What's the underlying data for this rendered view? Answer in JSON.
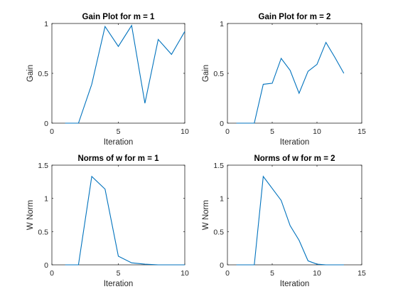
{
  "chart_data": [
    {
      "type": "line",
      "title": "Gain Plot for m = 1",
      "xlabel": "Iteration",
      "ylabel": "Gain",
      "xlim": [
        0,
        10
      ],
      "ylim": [
        0,
        1
      ],
      "xticks": [
        0,
        5,
        10
      ],
      "xtick_labels": [
        "0",
        "5",
        "10"
      ],
      "yticks": [
        0,
        0.5,
        1
      ],
      "ytick_labels": [
        "0",
        "0.5",
        "1"
      ],
      "grid": false,
      "color": "#0072BD",
      "x": [
        1,
        2,
        3,
        4,
        5,
        6,
        7,
        8,
        9,
        10
      ],
      "y": [
        0,
        0,
        0.39,
        0.97,
        0.77,
        0.98,
        0.2,
        0.84,
        0.69,
        0.92
      ]
    },
    {
      "type": "line",
      "title": "Gain Plot for m = 2",
      "xlabel": "Iteration",
      "ylabel": "Gain",
      "xlim": [
        0,
        15
      ],
      "ylim": [
        0,
        1
      ],
      "xticks": [
        0,
        5,
        10,
        15
      ],
      "xtick_labels": [
        "0",
        "5",
        "10",
        "15"
      ],
      "yticks": [
        0,
        0.5,
        1
      ],
      "ytick_labels": [
        "0",
        "0.5",
        "1"
      ],
      "grid": false,
      "color": "#0072BD",
      "x": [
        1,
        2,
        3,
        4,
        5,
        6,
        7,
        8,
        9,
        10,
        11,
        12,
        13
      ],
      "y": [
        0,
        0,
        0,
        0.39,
        0.4,
        0.65,
        0.53,
        0.3,
        0.52,
        0.59,
        0.81,
        0.66,
        0.5
      ]
    },
    {
      "type": "line",
      "title": "Norms of w for m = 1",
      "xlabel": "Iteration",
      "ylabel": "W Norm",
      "xlim": [
        0,
        10
      ],
      "ylim": [
        0,
        1.5
      ],
      "xticks": [
        0,
        5,
        10
      ],
      "xtick_labels": [
        "0",
        "5",
        "10"
      ],
      "yticks": [
        0,
        0.5,
        1,
        1.5
      ],
      "ytick_labels": [
        "0",
        "0.5",
        "1",
        "1.5"
      ],
      "grid": false,
      "color": "#0072BD",
      "x": [
        1,
        2,
        3,
        4,
        5,
        6,
        7,
        8,
        9,
        10
      ],
      "y": [
        0,
        0,
        1.33,
        1.14,
        0.13,
        0.03,
        0.01,
        0,
        0,
        0
      ]
    },
    {
      "type": "line",
      "title": "Norms of w for m = 2",
      "xlabel": "Iteration",
      "ylabel": "W Norm",
      "xlim": [
        0,
        15
      ],
      "ylim": [
        0,
        1.5
      ],
      "xticks": [
        0,
        5,
        10,
        15
      ],
      "xtick_labels": [
        "0",
        "5",
        "10",
        "15"
      ],
      "yticks": [
        0,
        0.5,
        1,
        1.5
      ],
      "ytick_labels": [
        "0",
        "0.5",
        "1",
        "1.5"
      ],
      "grid": false,
      "color": "#0072BD",
      "x": [
        1,
        2,
        3,
        4,
        5,
        6,
        7,
        8,
        9,
        10,
        11,
        12,
        13
      ],
      "y": [
        0,
        0,
        0,
        1.33,
        1.15,
        0.97,
        0.59,
        0.37,
        0.06,
        0.01,
        0,
        0,
        0
      ]
    }
  ]
}
